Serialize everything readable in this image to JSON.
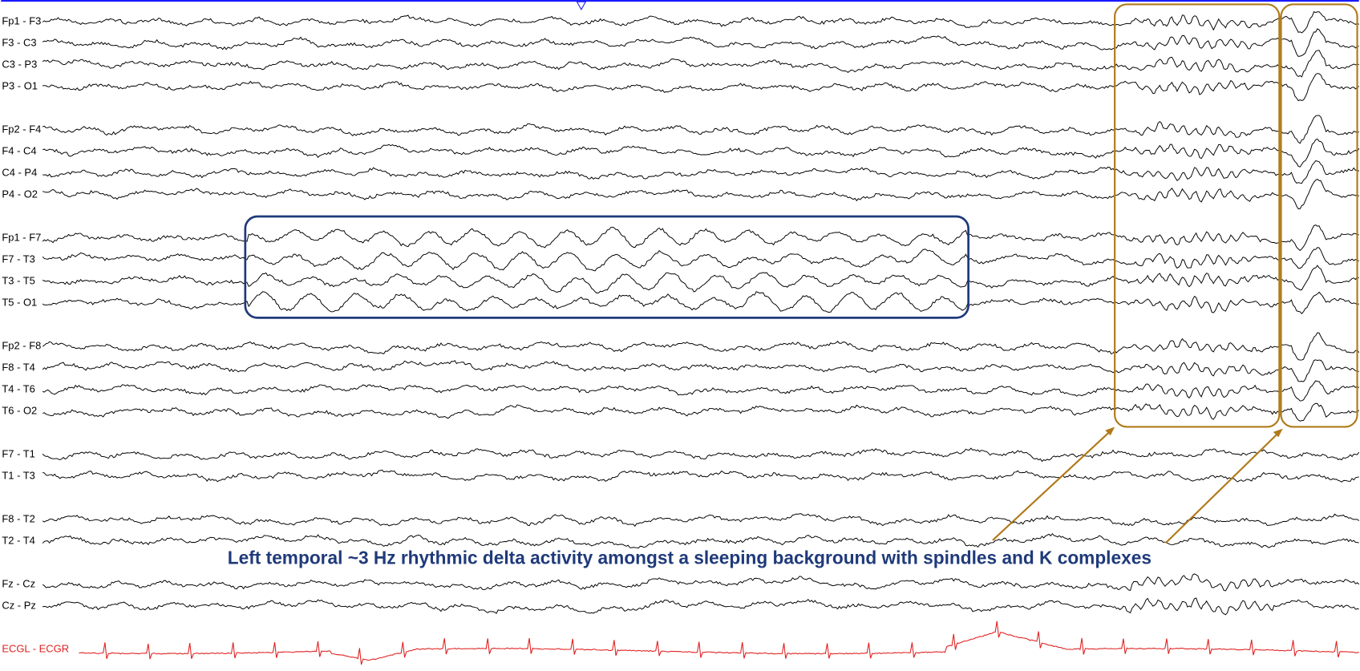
{
  "channels": [
    "Fp1 - F3",
    "F3 - C3",
    "C3 - P3",
    "P3 - O1",
    "Fp2 - F4",
    "F4 - C4",
    "C4 - P4",
    "P4 - O2",
    "Fp1 - F7",
    "F7 - T3",
    "T3 - T5",
    "T5 - O1",
    "Fp2 - F8",
    "F8 - T4",
    "T4 - T6",
    "T6 - O2",
    "F7 - T1",
    "T1 - T3",
    "F8 - T2",
    "T2 - T4",
    "Fz - Cz",
    "Cz - Pz"
  ],
  "ecg_channel": "ECGL - ECGR",
  "annotation": "Left temporal ~3 Hz rhythmic delta activity amongst a sleeping background with spindles and K complexes"
}
